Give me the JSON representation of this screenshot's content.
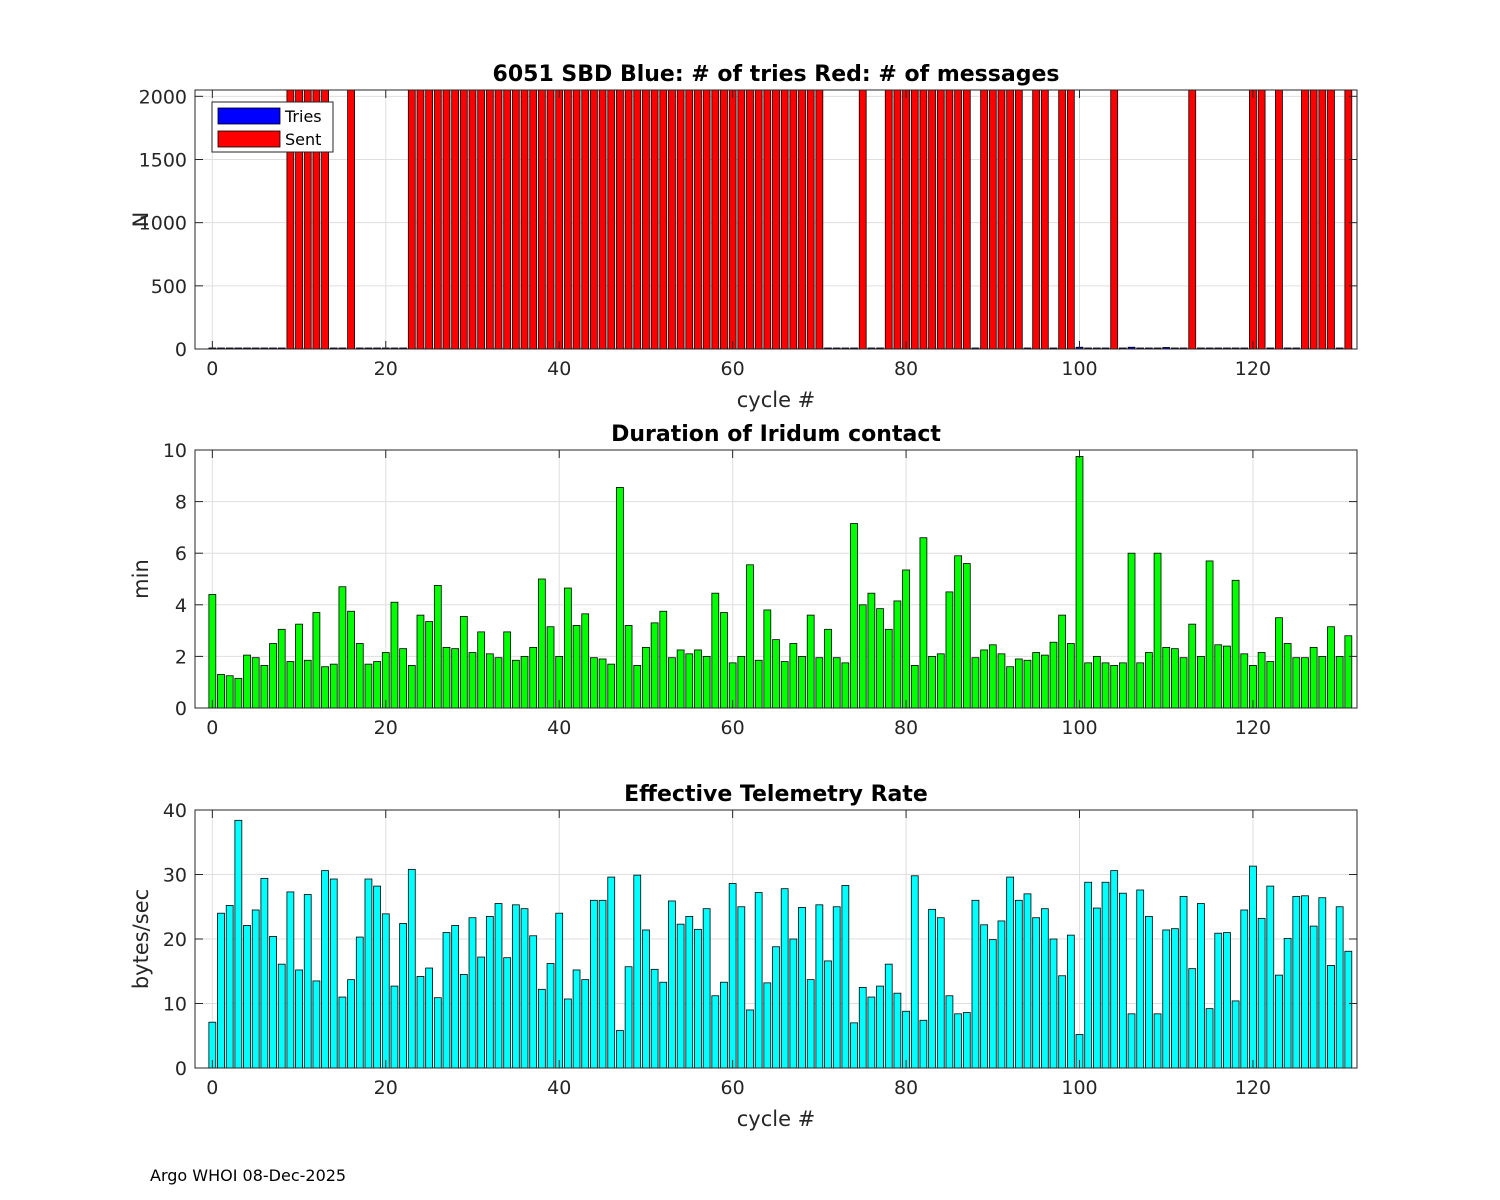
{
  "footer": "Argo WHOI 08-Dec-2025",
  "colors": {
    "tries": "#0000ff",
    "sent": "#ff0000",
    "duration": "#00ff00",
    "rate": "#00ffff"
  },
  "chart_data": [
    {
      "id": "sbd",
      "type": "bar",
      "title": "6051 SBD  Blue: # of tries   Red: # of messages",
      "xlabel": "cycle #",
      "ylabel": "N",
      "xlim": [
        -2,
        132
      ],
      "ylim": [
        0,
        2050
      ],
      "xticks": [
        0,
        20,
        40,
        60,
        80,
        100,
        120
      ],
      "yticks": [
        0,
        500,
        1000,
        1500,
        2000
      ],
      "grid": true,
      "legend": {
        "position": "top-left",
        "entries": [
          "Tries",
          "Sent"
        ]
      },
      "series": [
        {
          "name": "Tries",
          "color": "#0000ff",
          "default_value": 8,
          "overrides": {
            "75": 12,
            "100": 14,
            "106": 14,
            "110": 12
          }
        },
        {
          "name": "Sent",
          "color": "#ff0000",
          "value": 2050,
          "x": [
            9,
            10,
            11,
            12,
            13,
            16,
            23,
            24,
            25,
            26,
            27,
            28,
            29,
            30,
            31,
            32,
            33,
            34,
            35,
            36,
            37,
            38,
            39,
            40,
            41,
            42,
            43,
            44,
            45,
            46,
            47,
            48,
            49,
            50,
            51,
            52,
            53,
            54,
            55,
            56,
            57,
            58,
            59,
            60,
            61,
            62,
            63,
            64,
            65,
            66,
            67,
            68,
            69,
            70,
            75,
            78,
            79,
            80,
            81,
            82,
            83,
            84,
            85,
            86,
            87,
            89,
            90,
            91,
            92,
            93,
            95,
            96,
            98,
            99,
            104,
            113,
            120,
            121,
            123,
            126,
            127,
            128,
            129,
            131
          ]
        }
      ]
    },
    {
      "id": "duration",
      "type": "bar",
      "title": "Duration of Iridum contact",
      "xlabel": "",
      "ylabel": "min",
      "xlim": [
        -2,
        132
      ],
      "ylim": [
        0,
        10
      ],
      "xticks": [
        0,
        20,
        40,
        60,
        80,
        100,
        120
      ],
      "yticks": [
        0,
        2,
        4,
        6,
        8,
        10
      ],
      "grid": true,
      "x_start": 0,
      "values": [
        4.4,
        1.3,
        1.25,
        1.15,
        2.05,
        1.95,
        1.65,
        2.5,
        3.05,
        1.8,
        3.25,
        1.85,
        3.7,
        1.6,
        1.7,
        4.7,
        3.75,
        2.5,
        1.7,
        1.8,
        2.15,
        4.1,
        2.3,
        1.65,
        3.6,
        3.35,
        4.75,
        2.35,
        2.3,
        3.55,
        2.15,
        2.95,
        2.1,
        1.95,
        2.95,
        1.85,
        2.0,
        2.35,
        5.0,
        3.15,
        2.0,
        4.65,
        3.2,
        3.65,
        1.95,
        1.9,
        1.7,
        8.55,
        3.2,
        1.65,
        2.35,
        3.3,
        3.75,
        1.95,
        2.25,
        2.1,
        2.25,
        2.0,
        4.45,
        3.7,
        1.75,
        2.0,
        5.55,
        1.85,
        3.8,
        2.65,
        1.8,
        2.5,
        2.0,
        3.6,
        1.95,
        3.05,
        1.95,
        1.75,
        7.15,
        4.0,
        4.45,
        3.85,
        3.05,
        4.15,
        5.35,
        1.65,
        6.6,
        2.0,
        2.1,
        4.5,
        5.9,
        5.6,
        1.95,
        2.25,
        2.45,
        2.1,
        1.6,
        1.9,
        1.85,
        2.15,
        2.05,
        2.55,
        3.6,
        2.5,
        9.75,
        1.75,
        2.0,
        1.75,
        1.65,
        1.75,
        6.0,
        1.75,
        2.15,
        6.0,
        2.35,
        2.3,
        1.95,
        3.25,
        2.0,
        5.7,
        2.45,
        2.4,
        4.95,
        2.1,
        1.65,
        2.15,
        1.8,
        3.5,
        2.5,
        1.95,
        1.95,
        2.35,
        2.0,
        3.15,
        2.0,
        2.8
      ]
    },
    {
      "id": "rate",
      "type": "bar",
      "title": "Effective Telemetry Rate",
      "xlabel": "cycle #",
      "ylabel": "bytes/sec",
      "xlim": [
        -2,
        132
      ],
      "ylim": [
        0,
        40
      ],
      "xticks": [
        0,
        20,
        40,
        60,
        80,
        100,
        120
      ],
      "yticks": [
        0,
        10,
        20,
        30,
        40
      ],
      "grid": true,
      "x_start": 0,
      "values": [
        7.1,
        24.0,
        25.2,
        38.4,
        22.1,
        24.5,
        29.4,
        20.4,
        16.1,
        27.3,
        15.2,
        26.9,
        13.5,
        30.6,
        29.3,
        11.0,
        13.7,
        20.3,
        29.3,
        28.2,
        23.9,
        12.7,
        22.4,
        30.8,
        14.2,
        15.5,
        10.9,
        21.0,
        22.1,
        14.5,
        23.3,
        17.2,
        23.5,
        25.5,
        17.1,
        25.3,
        24.7,
        20.5,
        12.2,
        16.2,
        24.0,
        10.7,
        15.2,
        13.7,
        26.0,
        26.0,
        29.6,
        5.8,
        15.7,
        29.9,
        21.4,
        15.3,
        13.3,
        25.9,
        22.3,
        23.5,
        21.5,
        24.7,
        11.2,
        13.3,
        28.6,
        25.0,
        9.0,
        27.2,
        13.2,
        18.8,
        27.8,
        20.0,
        24.9,
        13.7,
        25.3,
        16.6,
        25.0,
        28.3,
        7.0,
        12.5,
        11.0,
        12.7,
        16.1,
        11.6,
        8.8,
        29.8,
        7.4,
        24.6,
        23.3,
        11.2,
        8.4,
        8.6,
        26.0,
        22.2,
        19.9,
        22.8,
        29.6,
        26.0,
        27.0,
        23.3,
        24.7,
        20.0,
        14.3,
        20.6,
        5.2,
        28.8,
        24.8,
        28.8,
        30.6,
        27.1,
        8.4,
        27.6,
        23.5,
        8.4,
        21.4,
        21.6,
        26.6,
        15.4,
        25.5,
        9.2,
        20.9,
        21.0,
        10.4,
        24.5,
        31.3,
        23.2,
        28.2,
        14.4,
        20.1,
        26.6,
        26.7,
        22.0,
        26.4,
        15.9,
        25.0,
        18.1
      ]
    }
  ]
}
